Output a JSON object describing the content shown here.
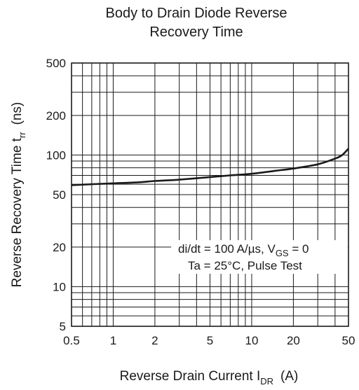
{
  "chart_data": {
    "type": "line",
    "title_lines": [
      "Body to Drain Diode Reverse",
      "Recovery Time"
    ],
    "xlabel_main": "Reverse Drain Current  I",
    "xlabel_sub": "DR",
    "xlabel_unit": "(A)",
    "ylabel_main": "Reverse Recovery Time  t",
    "ylabel_sub": "rr",
    "ylabel_unit": "(ns)",
    "xscale": "log",
    "yscale": "log",
    "xlim": [
      0.5,
      50
    ],
    "ylim": [
      5,
      500
    ],
    "xticks": [
      0.5,
      1,
      2,
      5,
      10,
      20,
      50
    ],
    "xtick_labels": [
      "0.5",
      "1",
      "2",
      "5",
      "10",
      "20",
      "50"
    ],
    "yticks": [
      5,
      10,
      20,
      50,
      100,
      200,
      500
    ],
    "ytick_labels": [
      "5",
      "10",
      "20",
      "50",
      "100",
      "200",
      "500"
    ],
    "grid": true,
    "annotation": {
      "line1_a": "di/dt = 100 A/",
      "line1_mu": "µ",
      "line1_b": "s, V",
      "line1_sub": "GS",
      "line1_c": " = 0",
      "line2": "Ta = 25°C, Pulse Test"
    },
    "series": [
      {
        "x": [
          0.5,
          0.7,
          1,
          1.5,
          2,
          3,
          5,
          7,
          10,
          15,
          20,
          30,
          40,
          45,
          50
        ],
        "y": [
          59,
          60,
          61,
          62,
          63.5,
          65,
          68,
          70,
          72,
          76,
          79,
          85,
          94,
          100,
          112
        ]
      }
    ]
  }
}
